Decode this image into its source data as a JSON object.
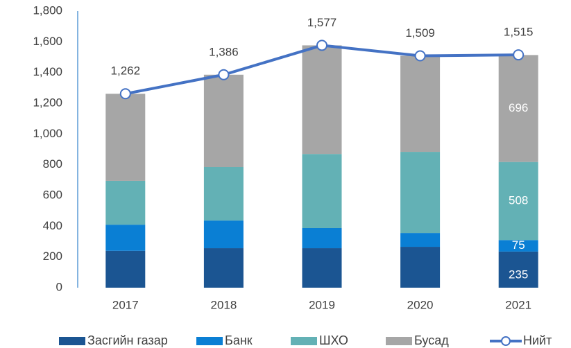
{
  "chart_data": {
    "type": "bar",
    "stacked": true,
    "categories": [
      "2017",
      "2018",
      "2019",
      "2020",
      "2021"
    ],
    "series": [
      {
        "name": "Засгийн газар",
        "color": "#1b5592",
        "values": [
          240,
          257,
          257,
          266,
          235
        ],
        "value_labels": [
          null,
          null,
          null,
          null,
          "235"
        ]
      },
      {
        "name": "Банк",
        "color": "#0a7fd4",
        "values": [
          170,
          180,
          131,
          90,
          75
        ],
        "value_labels": [
          null,
          null,
          null,
          null,
          "75"
        ]
      },
      {
        "name": "ШХО",
        "color": "#63b1b5",
        "values": [
          285,
          348,
          482,
          528,
          508
        ],
        "value_labels": [
          null,
          null,
          null,
          null,
          "508"
        ]
      },
      {
        "name": "Бусад",
        "color": "#a6a6a6",
        "values": [
          567,
          601,
          707,
          625,
          696
        ],
        "value_labels": [
          null,
          null,
          null,
          null,
          "696"
        ]
      },
      {
        "name": "Нийт",
        "type": "line",
        "color": "#4472c4",
        "values": [
          1262,
          1386,
          1577,
          1509,
          1515
        ],
        "value_labels": [
          "1,262",
          "1,386",
          "1,577",
          "1,509",
          "1,515"
        ]
      }
    ],
    "ylim": [
      0,
      1800
    ],
    "yticks": [
      0,
      200,
      400,
      600,
      800,
      {
        "value": 1000,
        "label": "1,000"
      },
      {
        "value": 1200,
        "label": "1,200"
      },
      {
        "value": 1400,
        "label": "1,400"
      },
      {
        "value": 1600,
        "label": "1,600"
      },
      {
        "value": 1800,
        "label": "1,800"
      }
    ],
    "grid": false,
    "legend": "bottom"
  }
}
